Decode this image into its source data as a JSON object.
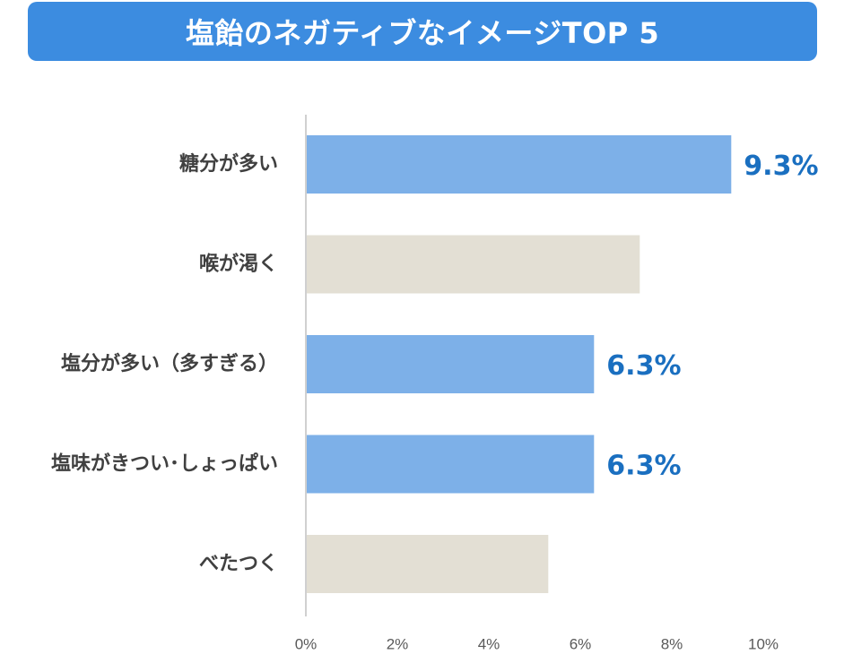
{
  "chart_data": {
    "type": "bar",
    "orientation": "horizontal",
    "title": "塩飴のネガティブなイメージTOP 5",
    "categories": [
      "糖分が多い",
      "喉が渇く",
      "塩分が多い（多すぎる）",
      "塩味がきつい･しょっぱい",
      "べたつく"
    ],
    "values": [
      9.3,
      7.3,
      6.3,
      6.3,
      5.3
    ],
    "data_labels": [
      "9.3%",
      "",
      "6.3%",
      "6.3%",
      ""
    ],
    "highlighted": [
      true,
      false,
      true,
      true,
      false
    ],
    "xlim": [
      0,
      10
    ],
    "xticks": [
      "0%",
      "2%",
      "4%",
      "6%",
      "8%",
      "10%"
    ],
    "xtick_values": [
      0,
      2,
      4,
      6,
      8,
      10
    ],
    "grid": false,
    "colors": {
      "highlight": "#7db0e8",
      "normal": "#e3dfd4",
      "label": "#1a6fc0",
      "title_bg": "#3c8ce0"
    }
  }
}
